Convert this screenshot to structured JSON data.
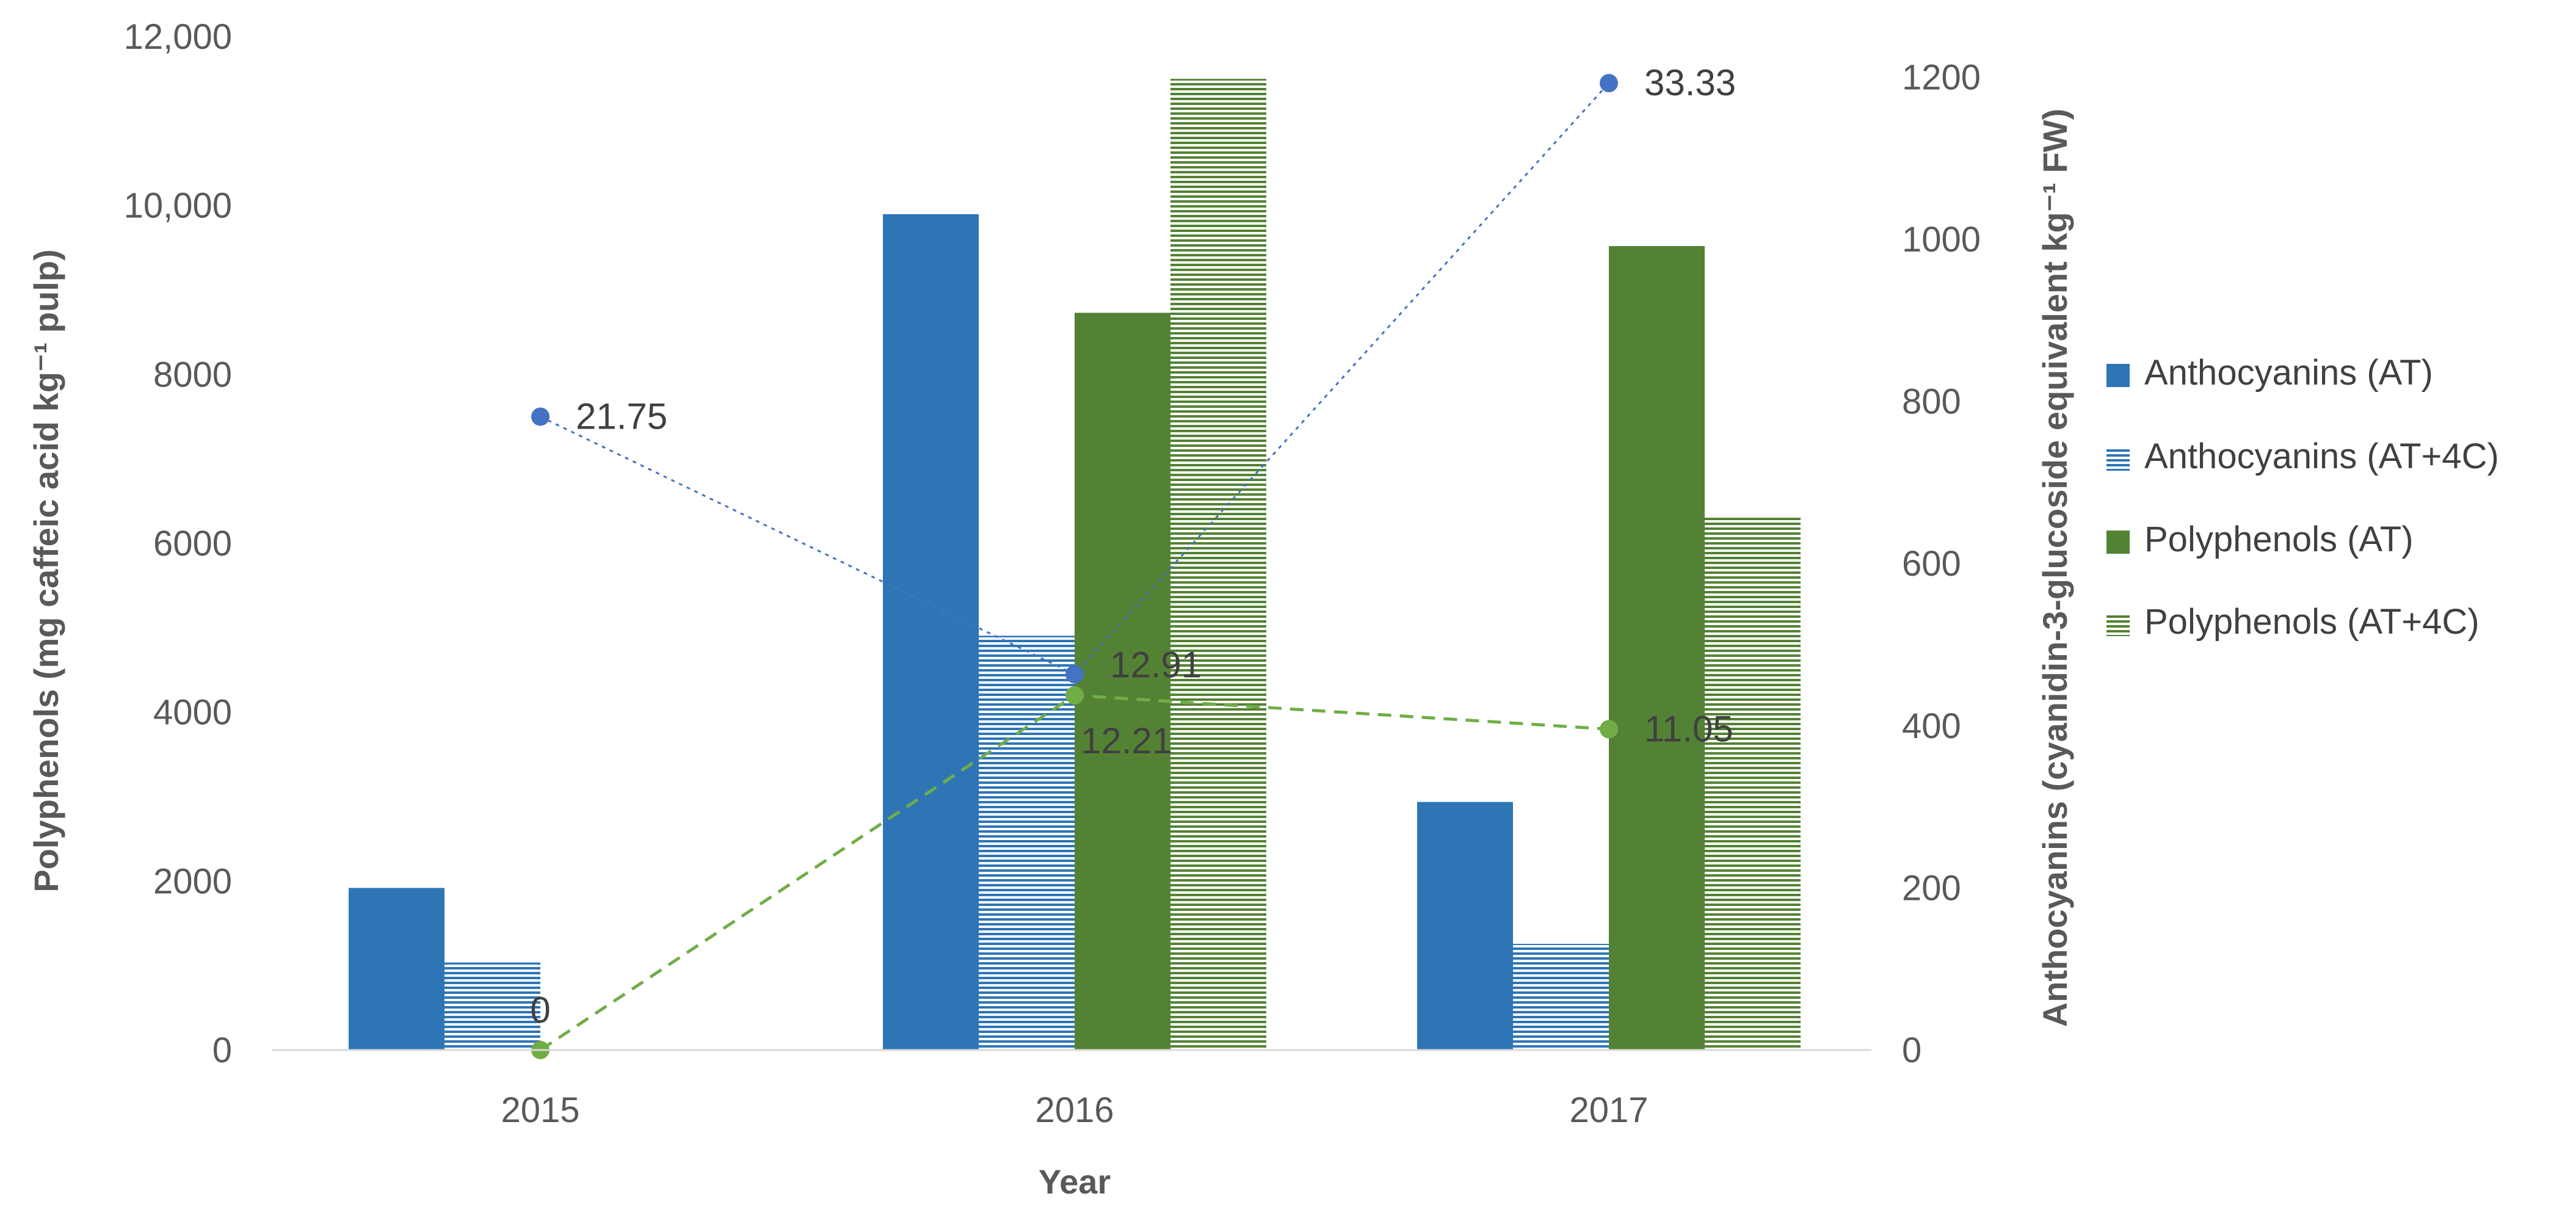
{
  "chart_data": {
    "type": "bar",
    "title": "",
    "categories": [
      "2015",
      "2016",
      "2017"
    ],
    "xlabel": "Year",
    "ylabel_left": "Polyphenols (mg caffeic acid kg⁻¹ pulp)",
    "ylabel_right": "Anthocyanins (cyanidin-3-glucoside equivalent kg⁻¹ FW)",
    "left_axis": {
      "min": 0,
      "max": 12000,
      "ticks": [
        {
          "value": 0,
          "label": "0"
        },
        {
          "value": 2000,
          "label": "2000"
        },
        {
          "value": 4000,
          "label": "4000"
        },
        {
          "value": 6000,
          "label": "6000"
        },
        {
          "value": 8000,
          "label": "8000"
        },
        {
          "value": 10000,
          "label": "10,000"
        },
        {
          "value": 12000,
          "label": "12,000"
        }
      ]
    },
    "right_axis": {
      "min": 0,
      "max": 1250,
      "ticks": [
        {
          "value": 0,
          "label": "0"
        },
        {
          "value": 200,
          "label": "200"
        },
        {
          "value": 400,
          "label": "400"
        },
        {
          "value": 600,
          "label": "600"
        },
        {
          "value": 800,
          "label": "800"
        },
        {
          "value": 1000,
          "label": "1000"
        },
        {
          "value": 1200,
          "label": "1200"
        }
      ]
    },
    "series": [
      {
        "name": "Anthocyanins (AT)",
        "axis": "right",
        "color": "#2E75B6",
        "pattern": "solid",
        "values": [
          200,
          1031,
          306
        ]
      },
      {
        "name": "Anthocyanins (AT+4C)",
        "axis": "right",
        "color": "#2E75B6",
        "pattern": "hlines",
        "values": [
          108,
          511,
          131
        ]
      },
      {
        "name": "Polyphenols (AT)",
        "axis": "left",
        "color": "#548235",
        "pattern": "solid",
        "values": [
          0,
          8730,
          9520
        ]
      },
      {
        "name": "Polyphenols (AT+4C)",
        "axis": "left",
        "color": "#548235",
        "pattern": "hlines",
        "values": [
          0,
          11500,
          6320
        ]
      }
    ],
    "lines": [
      {
        "color": "#4472C4",
        "style": "dotted",
        "values": [
          7500,
          4450,
          11450
        ],
        "labels": [
          "21.75",
          "12.91",
          "33.33"
        ]
      },
      {
        "color": "#70AD47",
        "style": "dashed",
        "values": [
          0,
          4200,
          3800
        ],
        "labels": [
          "0",
          "12.21",
          "11.05"
        ]
      }
    ],
    "legend_position": "right",
    "grid": false
  }
}
